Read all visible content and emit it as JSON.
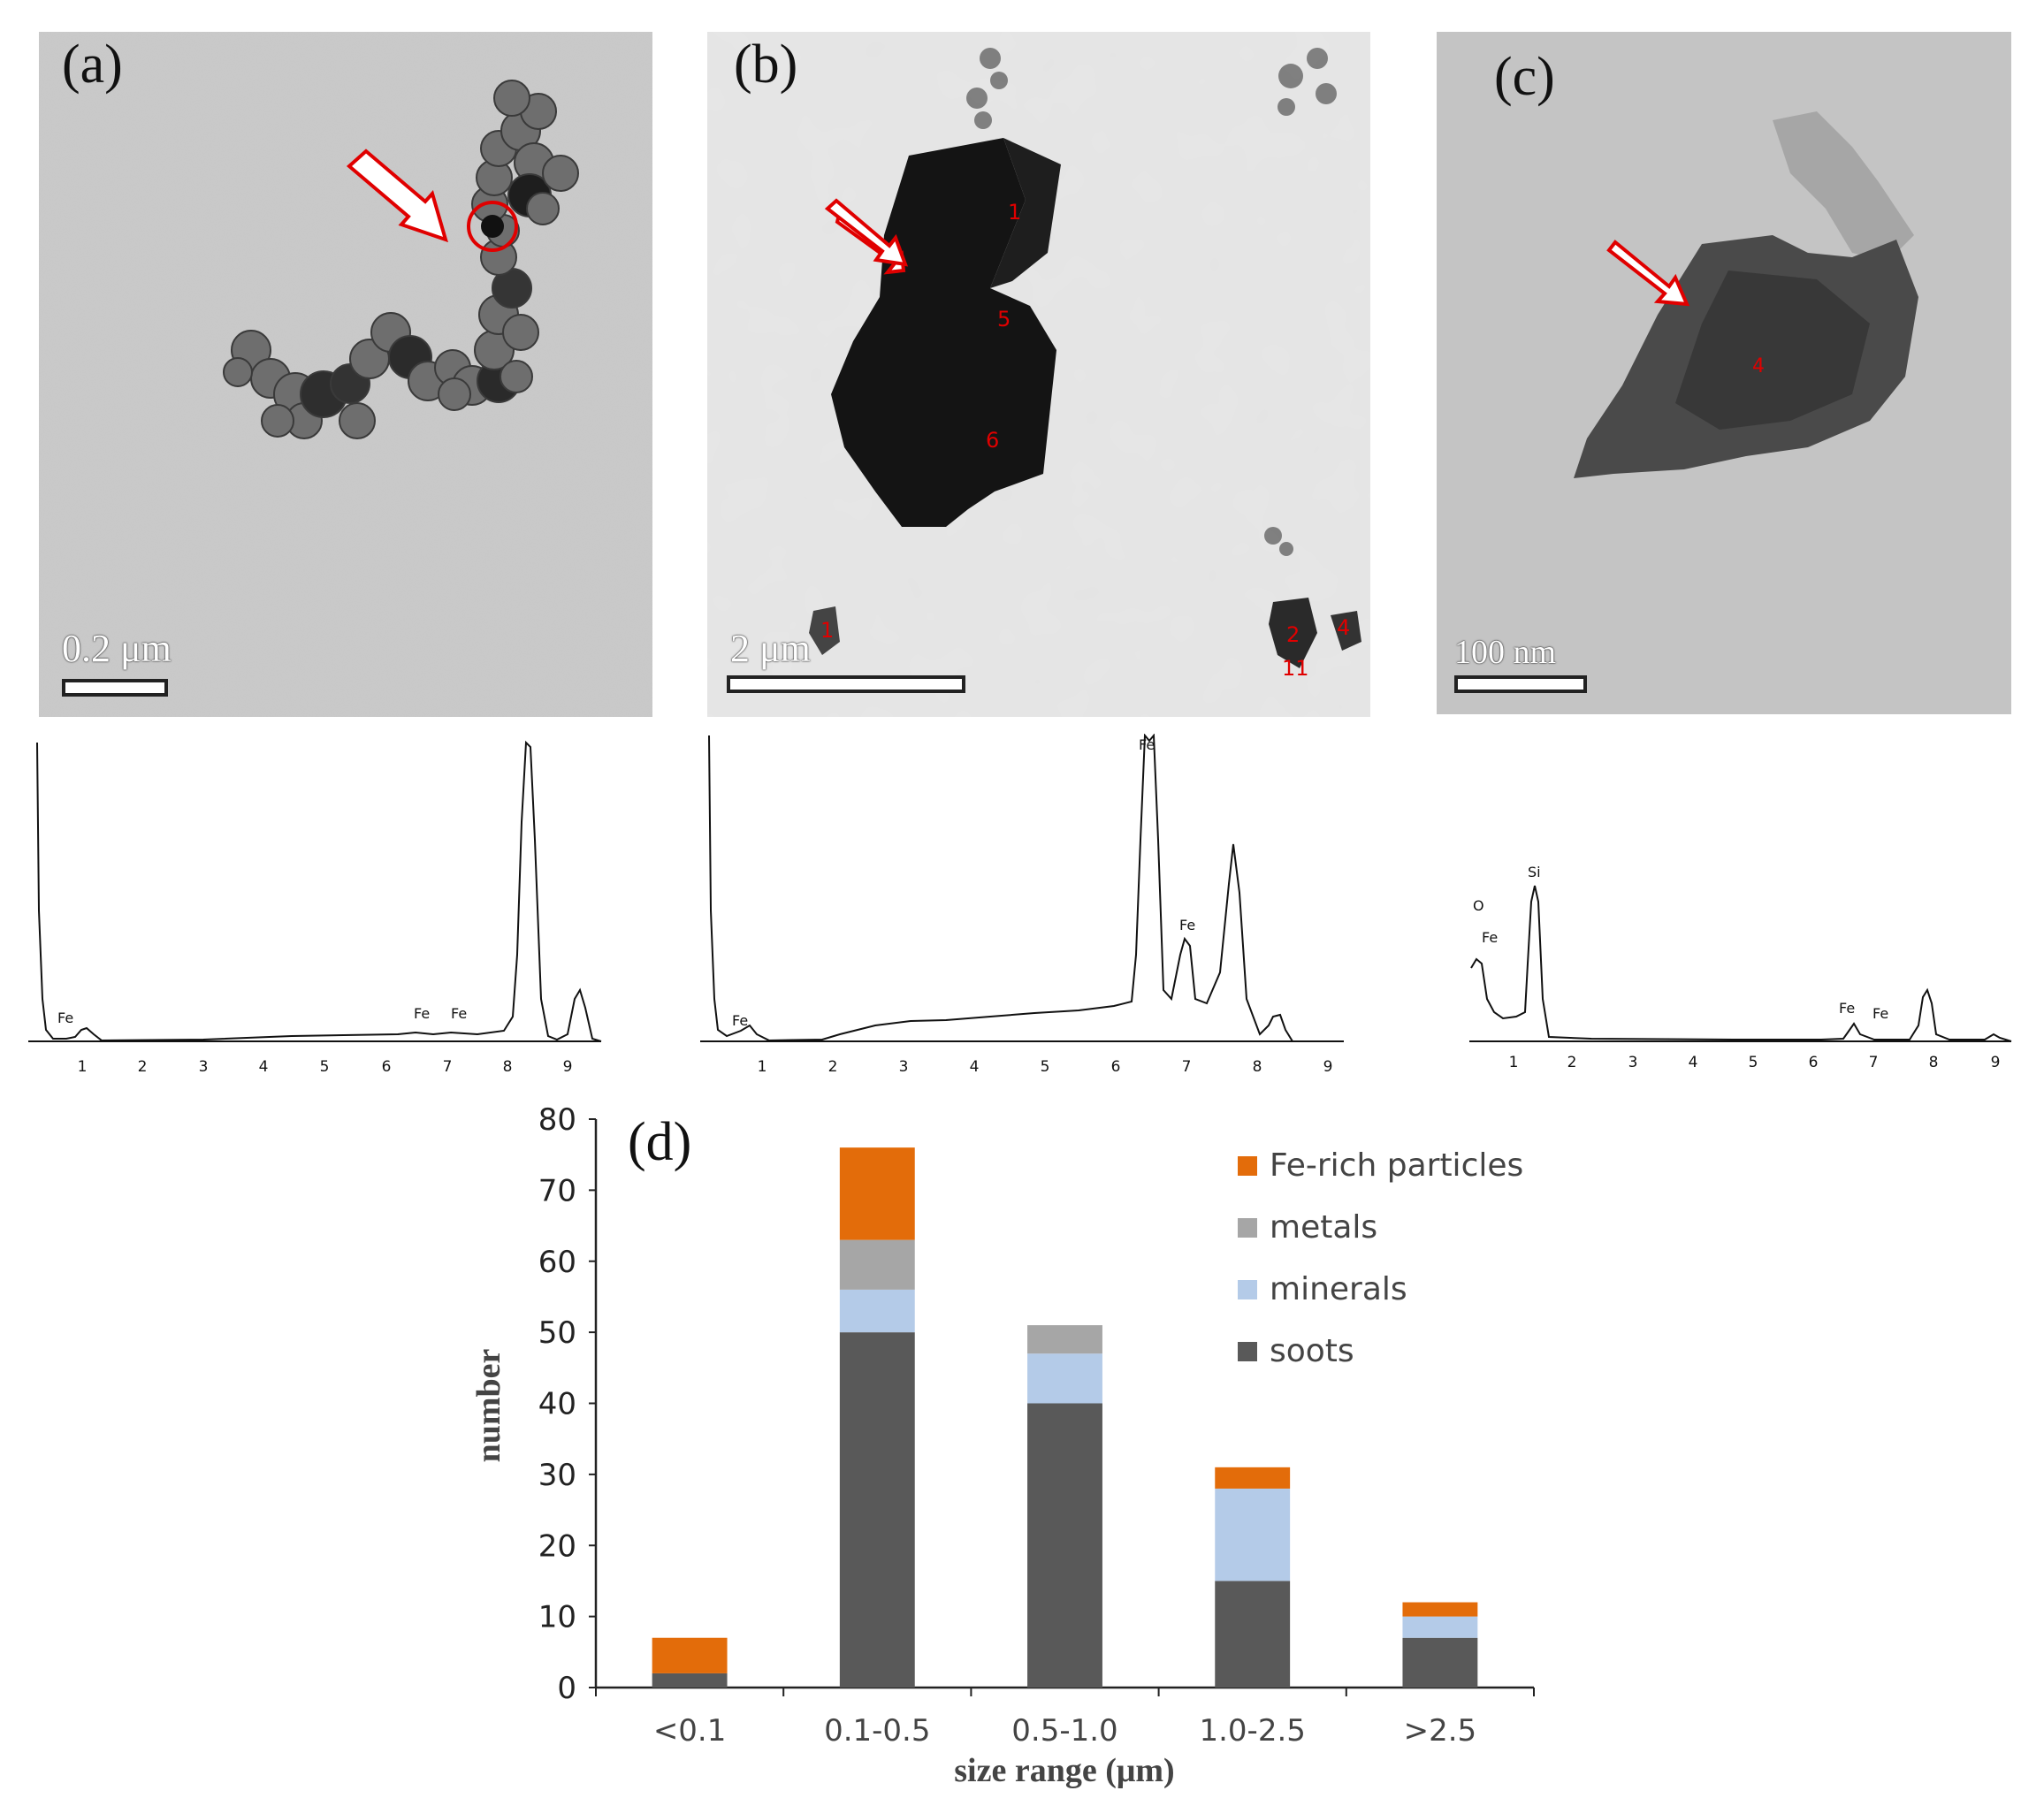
{
  "panels": [
    {
      "label": "(a)",
      "scale_bar": "0.2 μm",
      "point_labels": []
    },
    {
      "label": "(b)",
      "scale_bar": "2 μm",
      "point_labels": [
        "1",
        "5",
        "6",
        "1",
        "2",
        "11",
        "4"
      ]
    },
    {
      "label": "(c)",
      "scale_bar": "100 nm",
      "point_labels": [
        "4"
      ]
    }
  ],
  "spectra": [
    {
      "ticks": [
        "1",
        "2",
        "3",
        "4",
        "5",
        "6",
        "7",
        "8",
        "9"
      ],
      "peak_labels": [
        "Fe",
        "Fe",
        "Fe"
      ]
    },
    {
      "ticks": [
        "1",
        "2",
        "3",
        "4",
        "5",
        "6",
        "7",
        "8",
        "9"
      ],
      "peak_labels": [
        "Fe",
        "Fe",
        "Fe"
      ]
    },
    {
      "ticks": [
        "1",
        "2",
        "3",
        "4",
        "5",
        "6",
        "7",
        "8",
        "9"
      ],
      "peak_labels": [
        "O",
        "Fe",
        "Si",
        "Fe",
        "Fe"
      ]
    }
  ],
  "chart_data": {
    "type": "bar",
    "stacked": true,
    "panel_label": "(d)",
    "categories": [
      "<0.1",
      "0.1-0.5",
      "0.5-1.0",
      "1.0-2.5",
      ">2.5"
    ],
    "series": [
      {
        "name": "soots",
        "values": [
          2,
          50,
          40,
          15,
          7
        ],
        "color": "#595959"
      },
      {
        "name": "minerals",
        "values": [
          0,
          6,
          7,
          13,
          3
        ],
        "color": "#b4cbe8"
      },
      {
        "name": "metals",
        "values": [
          0,
          7,
          4,
          0,
          0
        ],
        "color": "#a6a6a6"
      },
      {
        "name": "Fe-rich particles",
        "values": [
          5,
          13,
          0,
          3,
          2
        ],
        "color": "#e36c0a"
      }
    ],
    "legend_order": [
      "Fe-rich particles",
      "metals",
      "minerals",
      "soots"
    ],
    "legend_position": "top-right",
    "xlabel": "size range (μm)",
    "ylabel": "number",
    "ylim": [
      0,
      80
    ],
    "yticks": [
      "0",
      "10",
      "20",
      "30",
      "40",
      "50",
      "60",
      "70",
      "80"
    ],
    "grid": false
  }
}
